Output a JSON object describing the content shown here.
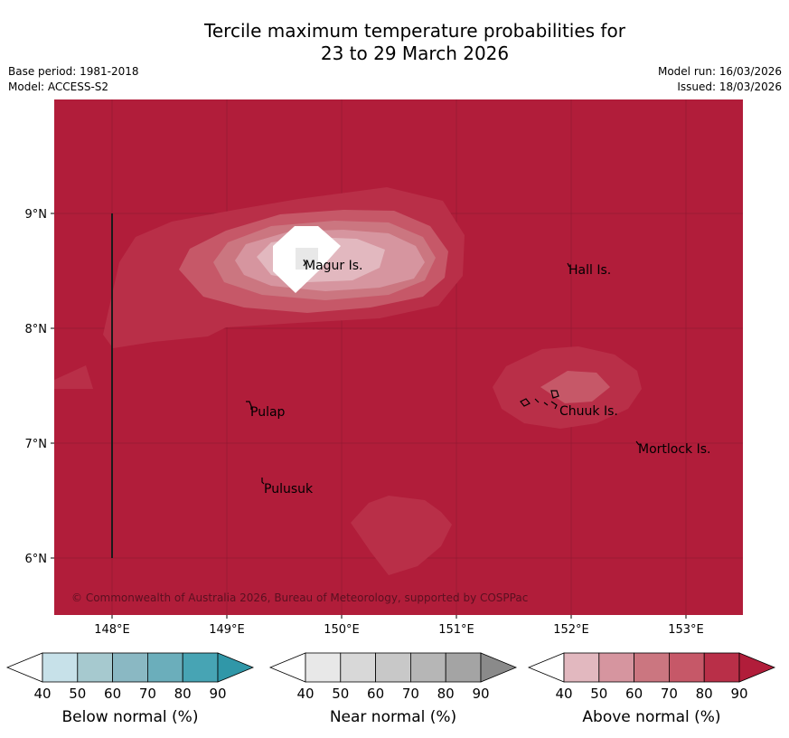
{
  "header": {
    "title_line1": "Tercile maximum temperature probabilities for",
    "title_line2": "23 to 29 March 2026",
    "base_period": "Base period: 1981-2018",
    "model": "Model: ACCESS-S2",
    "model_run": "Model run: 16/03/2026",
    "issued": "Issued: 18/03/2026"
  },
  "map": {
    "copyright": "© Commonwealth of Australia 2026, Bureau of Meteorology, supported by COSPPac",
    "lat_labels": [
      "9°N",
      "8°N",
      "7°N",
      "6°N"
    ],
    "lon_labels": [
      "148°E",
      "149°E",
      "150°E",
      "151°E",
      "152°E",
      "153°E"
    ],
    "places": [
      "Magur Is.",
      "Hall Is.",
      "Pulap",
      "Chuuk Is.",
      "Mortlock Is.",
      "Pulusuk"
    ],
    "background_category": "Above normal 80-90%"
  },
  "legend": {
    "ticks": [
      "40",
      "50",
      "60",
      "70",
      "80",
      "90"
    ],
    "below": {
      "title": "Below normal (%)",
      "colors": [
        "#c7e1e9",
        "#a6c9cf",
        "#8ab8c3",
        "#6baebb",
        "#47a4b4",
        "#3097a8"
      ]
    },
    "near": {
      "title": "Near normal (%)",
      "colors": [
        "#e8e8e8",
        "#d8d8d8",
        "#c8c8c8",
        "#b6b6b6",
        "#a4a4a4",
        "#8a8a8a"
      ]
    },
    "above": {
      "title": "Above normal (%)",
      "colors": [
        "#e2b8bf",
        "#d6959f",
        "#cb7680",
        "#c65868",
        "#b92f48",
        "#b11d3a"
      ]
    }
  }
}
